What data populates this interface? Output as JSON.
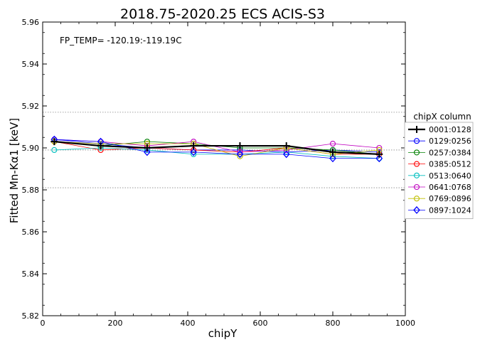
{
  "chart_data": {
    "type": "line",
    "title": "2018.75-2020.25   ECS   ACIS-S3",
    "xlabel": "chipY",
    "ylabel": "Fitted Mn-Kα1 [keV]",
    "xlim": [
      0,
      1000
    ],
    "ylim": [
      5.82,
      5.96
    ],
    "xticks": [
      "0",
      "200",
      "400",
      "600",
      "800",
      "1000"
    ],
    "yticks": [
      "5.82",
      "5.84",
      "5.86",
      "5.88",
      "5.90",
      "5.92",
      "5.94",
      "5.96"
    ],
    "annotation": "FP_TEMP= -120.19:-119.19C",
    "reference_lines": [
      5.917,
      5.899,
      5.881
    ],
    "grid": false,
    "legend_title": "chipX column",
    "legend_position": "right",
    "x": [
      32,
      160,
      288,
      416,
      544,
      672,
      800,
      928
    ],
    "series": [
      {
        "name": "0001:0128",
        "color": "#000000",
        "marker": "plus",
        "values": [
          5.903,
          5.901,
          5.9,
          5.901,
          5.901,
          5.901,
          5.898,
          5.897
        ]
      },
      {
        "name": "0129:0256",
        "color": "#0000ff",
        "marker": "circle",
        "values": [
          5.904,
          5.902,
          5.9,
          5.899,
          5.899,
          5.898,
          5.899,
          5.898
        ]
      },
      {
        "name": "0257:0384",
        "color": "#008000",
        "marker": "circle",
        "values": [
          5.903,
          5.901,
          5.903,
          5.902,
          5.9,
          5.9,
          5.899,
          5.897
        ]
      },
      {
        "name": "0385:0512",
        "color": "#ff0000",
        "marker": "circle",
        "values": [
          5.903,
          5.899,
          5.9,
          5.899,
          5.898,
          5.9,
          5.897,
          5.897
        ]
      },
      {
        "name": "0513:0640",
        "color": "#00bfbf",
        "marker": "circle",
        "values": [
          5.899,
          5.9,
          5.899,
          5.897,
          5.897,
          5.898,
          5.896,
          5.895
        ]
      },
      {
        "name": "0641:0768",
        "color": "#bf00bf",
        "marker": "circle",
        "values": [
          5.904,
          5.903,
          5.901,
          5.903,
          5.898,
          5.899,
          5.902,
          5.9
        ]
      },
      {
        "name": "0769:0896",
        "color": "#bfbf00",
        "marker": "circle",
        "values": [
          5.903,
          5.902,
          5.902,
          5.902,
          5.896,
          5.9,
          5.897,
          5.899
        ]
      },
      {
        "name": "0897:1024",
        "color": "#0000ff",
        "marker": "diamond",
        "values": [
          5.904,
          5.903,
          5.898,
          5.898,
          5.897,
          5.897,
          5.895,
          5.895
        ]
      }
    ]
  }
}
